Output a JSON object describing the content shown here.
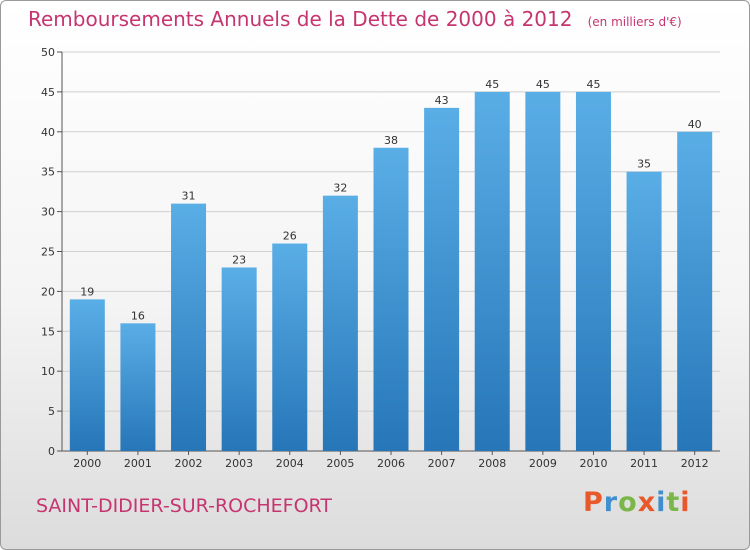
{
  "chart_data": {
    "type": "bar",
    "title": "Remboursements Annuels de la Dette de 2000 à 2012",
    "unit": "(en milliers d'€)",
    "categories": [
      "2000",
      "2001",
      "2002",
      "2003",
      "2004",
      "2005",
      "2006",
      "2007",
      "2008",
      "2009",
      "2010",
      "2011",
      "2012"
    ],
    "values": [
      19,
      16,
      31,
      23,
      26,
      32,
      38,
      43,
      45,
      45,
      45,
      35,
      40
    ],
    "ylim": [
      0,
      50
    ],
    "yticks": [
      0,
      5,
      10,
      15,
      20,
      25,
      30,
      35,
      40,
      45,
      50
    ],
    "grid": true,
    "bar_color_top": "#5aaee6",
    "bar_color_bottom": "#2676b8"
  },
  "footer": {
    "city": "SAINT-DIDIER-SUR-ROCHEFORT",
    "brand": "Proxiti"
  },
  "colors": {
    "title": "#c6356f",
    "brand_letters": [
      "#e8582a",
      "#3f8fd0",
      "#7ab648",
      "#e8582a",
      "#3f8fd0",
      "#7ab648",
      "#e8582a"
    ]
  }
}
